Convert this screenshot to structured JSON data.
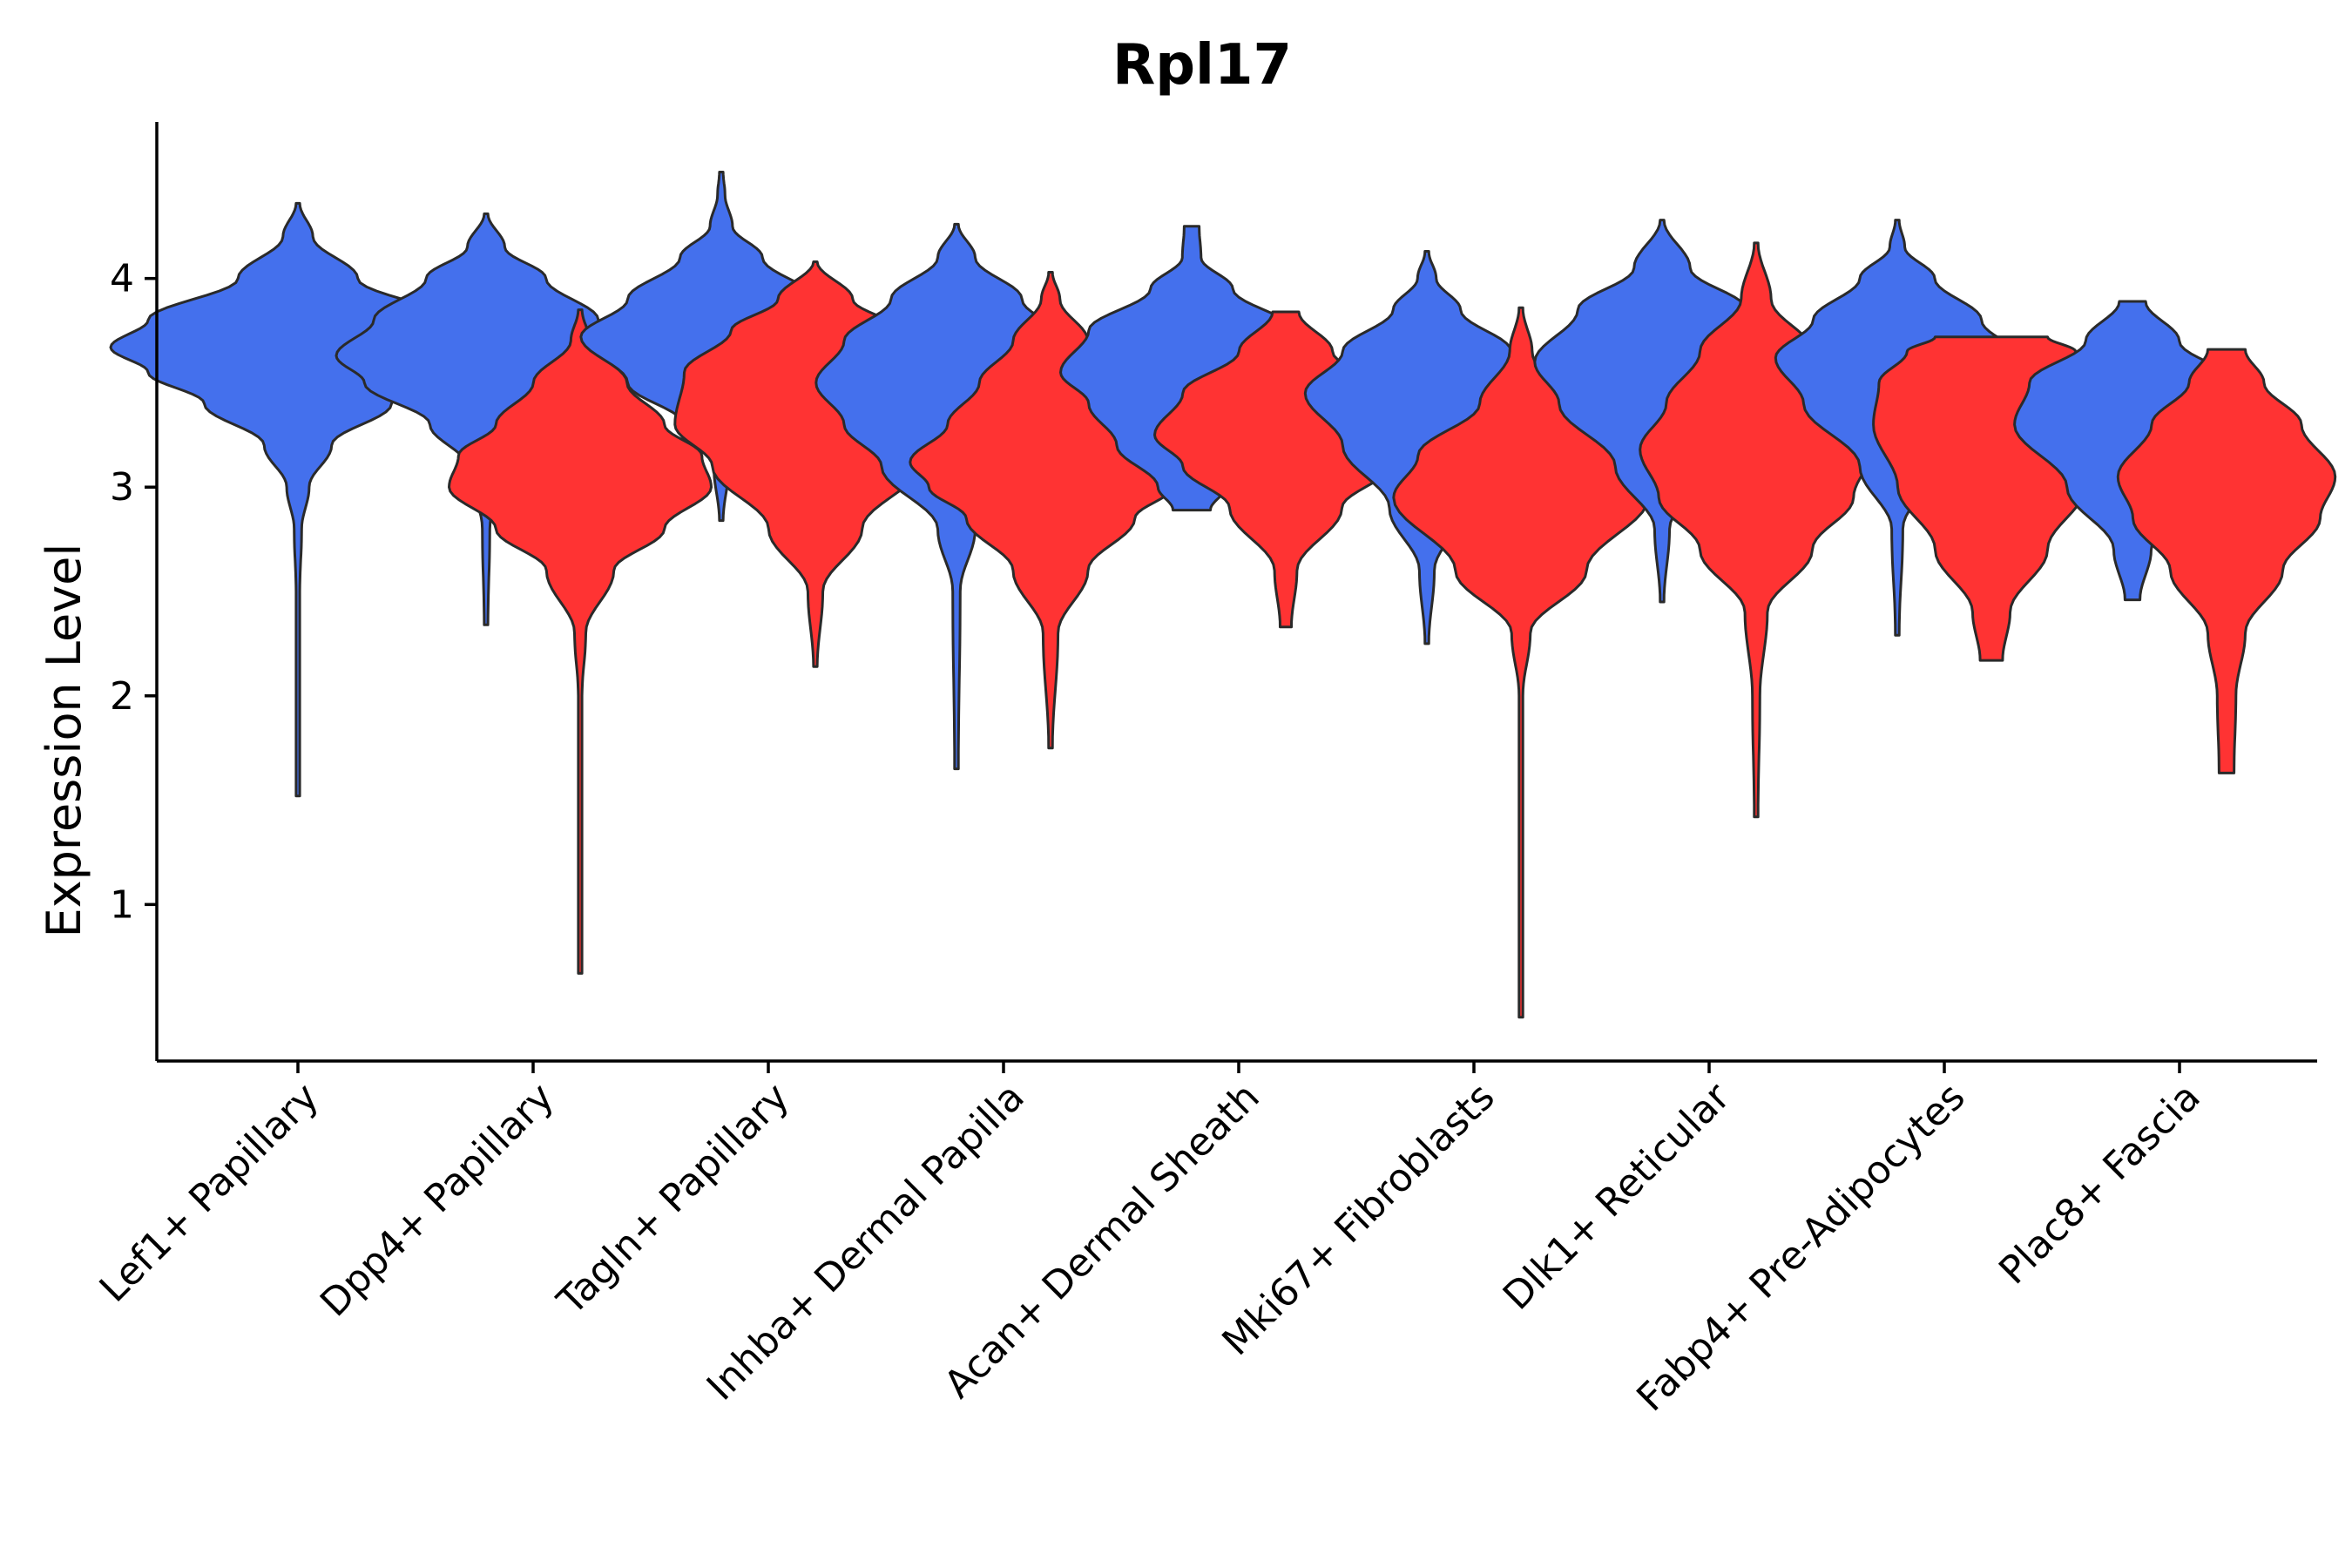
{
  "chart_data": {
    "type": "violin",
    "title": "Rpl17",
    "xlabel": "",
    "ylabel": "Expression Level",
    "ylim": [
      0.25,
      4.75
    ],
    "yticks": [
      1,
      2,
      3,
      4
    ],
    "grid": false,
    "legend": "none",
    "colors": {
      "group1": "#4470ed",
      "group2": "#ff3333",
      "outline": "#2a2a2a"
    },
    "categories": [
      "Lef1+ Papillary",
      "Dpp4+ Papillary",
      "Tagln+ Papillary",
      "Inhba+ Dermal Papilla",
      "Acan+ Dermal Sheath",
      "Mki67+ Fibroblasts",
      "Dlk1+ Reticular",
      "Fabp4+ Pre-Adipocytes",
      "Plac8+ Fascia"
    ],
    "violins": [
      {
        "category": "Lef1+ Papillary",
        "group": "group1",
        "offset": 0,
        "min": 1.52,
        "max": 4.36,
        "peak": 3.67,
        "profile": [
          [
            1.52,
            0.01
          ],
          [
            2.5,
            0.01
          ],
          [
            2.8,
            0.02
          ],
          [
            3.0,
            0.06
          ],
          [
            3.2,
            0.18
          ],
          [
            3.4,
            0.5
          ],
          [
            3.55,
            0.8
          ],
          [
            3.67,
            1.0
          ],
          [
            3.8,
            0.8
          ],
          [
            4.0,
            0.32
          ],
          [
            4.2,
            0.08
          ],
          [
            4.36,
            0.01
          ]
        ]
      },
      {
        "category": "Dpp4+ Papillary",
        "group": "group1",
        "offset": -0.25,
        "min": 2.34,
        "max": 4.31,
        "peak": 3.63,
        "profile": [
          [
            2.34,
            0.01
          ],
          [
            2.8,
            0.02
          ],
          [
            3.1,
            0.1
          ],
          [
            3.3,
            0.3
          ],
          [
            3.5,
            0.65
          ],
          [
            3.63,
            0.8
          ],
          [
            3.8,
            0.6
          ],
          [
            4.0,
            0.32
          ],
          [
            4.15,
            0.1
          ],
          [
            4.31,
            0.01
          ]
        ]
      },
      {
        "category": "Dpp4+ Papillary",
        "group": "group2",
        "offset": 0.25,
        "min": 0.67,
        "max": 3.85,
        "peak": 3.0,
        "profile": [
          [
            0.67,
            0.01
          ],
          [
            2.0,
            0.01
          ],
          [
            2.3,
            0.03
          ],
          [
            2.6,
            0.18
          ],
          [
            2.8,
            0.45
          ],
          [
            3.0,
            0.7
          ],
          [
            3.15,
            0.65
          ],
          [
            3.3,
            0.45
          ],
          [
            3.5,
            0.25
          ],
          [
            3.7,
            0.05
          ],
          [
            3.85,
            0.01
          ]
        ]
      },
      {
        "category": "Tagln+ Papillary",
        "group": "group1",
        "offset": -0.25,
        "min": 2.84,
        "max": 4.51,
        "peak": 3.72,
        "profile": [
          [
            2.84,
            0.01
          ],
          [
            3.1,
            0.04
          ],
          [
            3.3,
            0.2
          ],
          [
            3.5,
            0.5
          ],
          [
            3.72,
            0.75
          ],
          [
            3.9,
            0.5
          ],
          [
            4.1,
            0.22
          ],
          [
            4.25,
            0.06
          ],
          [
            4.4,
            0.02
          ],
          [
            4.51,
            0.01
          ]
        ]
      },
      {
        "category": "Tagln+ Papillary",
        "group": "group2",
        "offset": 0.25,
        "min": 2.14,
        "max": 4.08,
        "peak": 3.35,
        "profile": [
          [
            2.14,
            0.01
          ],
          [
            2.5,
            0.04
          ],
          [
            2.8,
            0.25
          ],
          [
            3.1,
            0.55
          ],
          [
            3.3,
            0.75
          ],
          [
            3.55,
            0.7
          ],
          [
            3.75,
            0.45
          ],
          [
            3.9,
            0.2
          ],
          [
            4.08,
            0.01
          ]
        ]
      },
      {
        "category": "Inhba+ Dermal Papilla",
        "group": "group1",
        "offset": -0.25,
        "min": 1.65,
        "max": 4.26,
        "peak": 3.5,
        "profile": [
          [
            1.65,
            0.01
          ],
          [
            2.5,
            0.02
          ],
          [
            2.8,
            0.1
          ],
          [
            3.1,
            0.4
          ],
          [
            3.3,
            0.6
          ],
          [
            3.5,
            0.75
          ],
          [
            3.7,
            0.6
          ],
          [
            3.9,
            0.35
          ],
          [
            4.1,
            0.1
          ],
          [
            4.26,
            0.01
          ]
        ]
      },
      {
        "category": "Inhba+ Dermal Papilla",
        "group": "group2",
        "offset": 0.25,
        "min": 1.75,
        "max": 4.03,
        "peak": 3.12,
        "profile": [
          [
            1.75,
            0.01
          ],
          [
            2.3,
            0.04
          ],
          [
            2.6,
            0.2
          ],
          [
            2.85,
            0.45
          ],
          [
            3.0,
            0.65
          ],
          [
            3.12,
            0.75
          ],
          [
            3.3,
            0.55
          ],
          [
            3.5,
            0.38
          ],
          [
            3.7,
            0.2
          ],
          [
            3.9,
            0.05
          ],
          [
            4.03,
            0.01
          ]
        ]
      },
      {
        "category": "Acan+ Dermal Sheath",
        "group": "group1",
        "offset": -0.25,
        "min": 2.89,
        "max": 4.25,
        "peak": 3.55,
        "profile": [
          [
            2.89,
            0.1
          ],
          [
            3.0,
            0.18
          ],
          [
            3.2,
            0.4
          ],
          [
            3.4,
            0.55
          ],
          [
            3.55,
            0.7
          ],
          [
            3.75,
            0.55
          ],
          [
            3.95,
            0.22
          ],
          [
            4.1,
            0.05
          ],
          [
            4.25,
            0.04
          ]
        ]
      },
      {
        "category": "Acan+ Dermal Sheath",
        "group": "group2",
        "offset": 0.25,
        "min": 2.33,
        "max": 3.84,
        "peak": 3.25,
        "profile": [
          [
            2.33,
            0.03
          ],
          [
            2.6,
            0.06
          ],
          [
            2.9,
            0.3
          ],
          [
            3.1,
            0.55
          ],
          [
            3.25,
            0.7
          ],
          [
            3.45,
            0.55
          ],
          [
            3.65,
            0.25
          ],
          [
            3.84,
            0.07
          ]
        ]
      },
      {
        "category": "Mki67+ Fibroblasts",
        "group": "group1",
        "offset": -0.25,
        "min": 2.25,
        "max": 4.13,
        "peak": 3.45,
        "profile": [
          [
            2.25,
            0.01
          ],
          [
            2.6,
            0.04
          ],
          [
            2.9,
            0.2
          ],
          [
            3.2,
            0.45
          ],
          [
            3.45,
            0.65
          ],
          [
            3.65,
            0.45
          ],
          [
            3.85,
            0.18
          ],
          [
            4.0,
            0.05
          ],
          [
            4.13,
            0.01
          ]
        ]
      },
      {
        "category": "Mki67+ Fibroblasts",
        "group": "group2",
        "offset": 0.25,
        "min": 0.46,
        "max": 3.86,
        "peak": 2.95,
        "profile": [
          [
            0.46,
            0.01
          ],
          [
            2.0,
            0.01
          ],
          [
            2.3,
            0.05
          ],
          [
            2.6,
            0.35
          ],
          [
            2.95,
            0.68
          ],
          [
            3.15,
            0.55
          ],
          [
            3.4,
            0.22
          ],
          [
            3.65,
            0.06
          ],
          [
            3.86,
            0.01
          ]
        ]
      },
      {
        "category": "Dlk1+ Reticular",
        "group": "group1",
        "offset": -0.25,
        "min": 2.45,
        "max": 4.28,
        "peak": 3.6,
        "profile": [
          [
            2.45,
            0.01
          ],
          [
            2.8,
            0.04
          ],
          [
            3.1,
            0.25
          ],
          [
            3.4,
            0.55
          ],
          [
            3.6,
            0.68
          ],
          [
            3.85,
            0.45
          ],
          [
            4.05,
            0.15
          ],
          [
            4.28,
            0.01
          ]
        ]
      },
      {
        "category": "Dlk1+ Reticular",
        "group": "group2",
        "offset": 0.25,
        "min": 1.42,
        "max": 4.17,
        "peak": 3.18,
        "profile": [
          [
            1.42,
            0.01
          ],
          [
            2.0,
            0.02
          ],
          [
            2.4,
            0.06
          ],
          [
            2.7,
            0.3
          ],
          [
            2.95,
            0.52
          ],
          [
            3.18,
            0.62
          ],
          [
            3.4,
            0.48
          ],
          [
            3.65,
            0.3
          ],
          [
            3.9,
            0.08
          ],
          [
            4.17,
            0.01
          ]
        ]
      },
      {
        "category": "Fabp4+ Pre-Adipocytes",
        "group": "group1",
        "offset": -0.25,
        "min": 2.29,
        "max": 4.28,
        "peak": 3.62,
        "profile": [
          [
            2.29,
            0.01
          ],
          [
            2.8,
            0.03
          ],
          [
            3.1,
            0.2
          ],
          [
            3.4,
            0.5
          ],
          [
            3.62,
            0.65
          ],
          [
            3.8,
            0.45
          ],
          [
            4.0,
            0.2
          ],
          [
            4.15,
            0.04
          ],
          [
            4.28,
            0.01
          ]
        ]
      },
      {
        "category": "Fabp4+ Pre-Adipocytes",
        "group": "group2",
        "offset": 0.25,
        "min": 2.17,
        "max": 3.72,
        "peak": 3.4,
        "profile": [
          [
            2.17,
            0.06
          ],
          [
            2.4,
            0.1
          ],
          [
            2.7,
            0.3
          ],
          [
            3.0,
            0.5
          ],
          [
            3.3,
            0.63
          ],
          [
            3.5,
            0.6
          ],
          [
            3.65,
            0.45
          ],
          [
            3.72,
            0.3
          ]
        ]
      },
      {
        "category": "Plac8+ Fascia",
        "group": "group1",
        "offset": -0.25,
        "min": 2.46,
        "max": 3.89,
        "peak": 3.3,
        "profile": [
          [
            2.46,
            0.04
          ],
          [
            2.7,
            0.1
          ],
          [
            3.0,
            0.35
          ],
          [
            3.3,
            0.63
          ],
          [
            3.5,
            0.55
          ],
          [
            3.7,
            0.25
          ],
          [
            3.89,
            0.07
          ]
        ]
      },
      {
        "category": "Plac8+ Fascia",
        "group": "group2",
        "offset": 0.25,
        "min": 1.63,
        "max": 3.66,
        "peak": 3.05,
        "profile": [
          [
            1.63,
            0.04
          ],
          [
            2.0,
            0.05
          ],
          [
            2.3,
            0.1
          ],
          [
            2.6,
            0.3
          ],
          [
            2.85,
            0.5
          ],
          [
            3.05,
            0.58
          ],
          [
            3.3,
            0.4
          ],
          [
            3.5,
            0.2
          ],
          [
            3.66,
            0.1
          ]
        ]
      }
    ]
  }
}
